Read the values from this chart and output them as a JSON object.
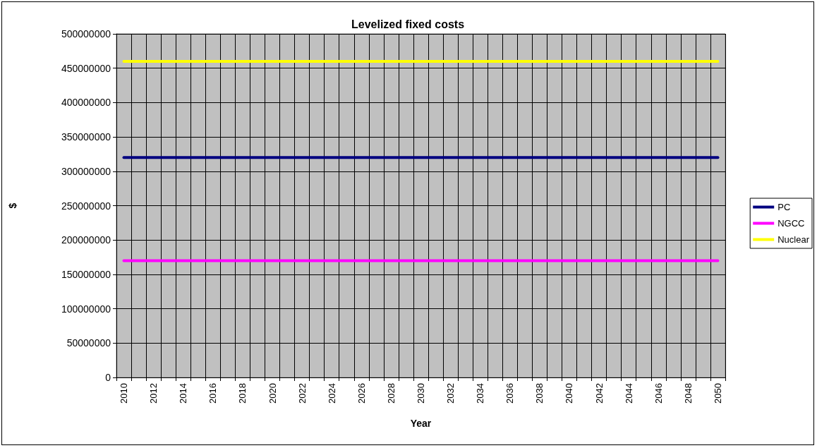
{
  "chart_data": {
    "type": "line",
    "title": "Levelized fixed costs",
    "xlabel": "Year",
    "ylabel": "$",
    "categories": [
      "2010",
      null,
      "2012",
      null,
      "2014",
      null,
      "2016",
      null,
      "2018",
      null,
      "2020",
      null,
      "2022",
      null,
      "2024",
      null,
      "2026",
      null,
      "2028",
      null,
      "2030",
      null,
      "2032",
      null,
      "2034",
      null,
      "2036",
      null,
      "2038",
      null,
      "2040",
      null,
      "2042",
      null,
      "2044",
      null,
      "2046",
      null,
      "2048",
      null,
      "2050"
    ],
    "series": [
      {
        "name": "PC",
        "color": "#000080",
        "values": [
          320000000,
          320000000,
          320000000,
          320000000,
          320000000,
          320000000,
          320000000,
          320000000,
          320000000,
          320000000,
          320000000,
          320000000,
          320000000,
          320000000,
          320000000,
          320000000,
          320000000,
          320000000,
          320000000,
          320000000,
          320000000,
          320000000,
          320000000,
          320000000,
          320000000,
          320000000,
          320000000,
          320000000,
          320000000,
          320000000,
          320000000,
          320000000,
          320000000,
          320000000,
          320000000,
          320000000,
          320000000,
          320000000,
          320000000,
          320000000,
          320000000
        ]
      },
      {
        "name": "NGCC",
        "color": "#ff00ff",
        "values": [
          170000000,
          170000000,
          170000000,
          170000000,
          170000000,
          170000000,
          170000000,
          170000000,
          170000000,
          170000000,
          170000000,
          170000000,
          170000000,
          170000000,
          170000000,
          170000000,
          170000000,
          170000000,
          170000000,
          170000000,
          170000000,
          170000000,
          170000000,
          170000000,
          170000000,
          170000000,
          170000000,
          170000000,
          170000000,
          170000000,
          170000000,
          170000000,
          170000000,
          170000000,
          170000000,
          170000000,
          170000000,
          170000000,
          170000000,
          170000000,
          170000000
        ]
      },
      {
        "name": "Nuclear",
        "color": "#ffff00",
        "values": [
          460000000,
          460000000,
          460000000,
          460000000,
          460000000,
          460000000,
          460000000,
          460000000,
          460000000,
          460000000,
          460000000,
          460000000,
          460000000,
          460000000,
          460000000,
          460000000,
          460000000,
          460000000,
          460000000,
          460000000,
          460000000,
          460000000,
          460000000,
          460000000,
          460000000,
          460000000,
          460000000,
          460000000,
          460000000,
          460000000,
          460000000,
          460000000,
          460000000,
          460000000,
          460000000,
          460000000,
          460000000,
          460000000,
          460000000,
          460000000,
          460000000
        ]
      }
    ],
    "ylim": [
      0,
      500000000
    ],
    "yticks": [
      0,
      50000000,
      100000000,
      150000000,
      200000000,
      250000000,
      300000000,
      350000000,
      400000000,
      450000000,
      500000000
    ],
    "grid": true,
    "legend": "right",
    "marker": "none",
    "line_style": "solid"
  }
}
